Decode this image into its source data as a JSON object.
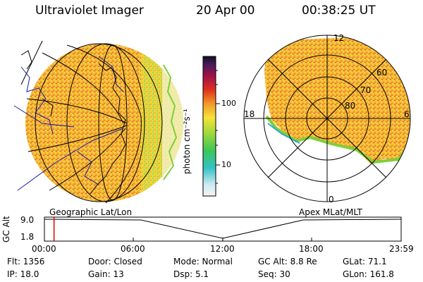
{
  "header": {
    "title": "Ultraviolet Imager",
    "date": "20 Apr 00",
    "time": "00:38:25 UT"
  },
  "colorbar": {
    "unit_label": "photon cm⁻²s⁻¹",
    "ticks": [
      "100",
      "10"
    ]
  },
  "polar_plot": {
    "mlt_labels": [
      "12",
      "18",
      "6",
      "0"
    ],
    "lat_labels": [
      "60",
      "70",
      "80"
    ]
  },
  "timeline": {
    "left_title": "Geographic Lat/Lon",
    "right_title": "Apex MLat/MLT",
    "axis_label": "GC Alt",
    "y_ticks": [
      "9.0",
      "1.8"
    ],
    "x_ticks": [
      "00:00",
      "06:00",
      "12:00",
      "18:00",
      "23:59"
    ],
    "current_time_fraction": 0.027
  },
  "info": {
    "col1": [
      "Flt:  1356",
      "IP:  18.0"
    ],
    "col2": [
      "Door:  Closed",
      "Gain:  13"
    ],
    "col3": [
      "Mode:  Normal",
      "Dsp:      5.1"
    ],
    "col4": [
      "GC Alt:  8.8 Re",
      "Seq:  30"
    ],
    "col5": [
      "GLat:    71.1",
      "GLon:  161.8"
    ]
  },
  "colors": {
    "aurora_high": "#e0301c",
    "aurora_mid": "#f29a2a",
    "aurora_low": "#f6d63a",
    "edge_green": "#7fcf3a",
    "edge_blue": "#2fa6d8",
    "grid": "#000000",
    "map_lines": "#1a1aa0",
    "cursor": "#e00000"
  }
}
